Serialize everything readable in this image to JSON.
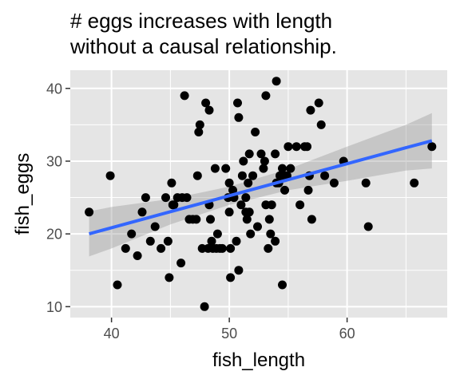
{
  "chart_data": {
    "type": "scatter",
    "title_lines": [
      "# eggs increases with length",
      "without a causal relationship."
    ],
    "xlabel": "fish_length",
    "ylabel": "fish_eggs",
    "xlim": [
      36.5,
      68.5
    ],
    "ylim": [
      8.5,
      42.5
    ],
    "x_ticks": [
      40,
      50,
      60
    ],
    "y_ticks": [
      10,
      20,
      30,
      40
    ],
    "x_tick_labels": [
      "40",
      "50",
      "60"
    ],
    "y_tick_labels": [
      "10",
      "20",
      "30",
      "40"
    ],
    "grid": true,
    "legend": "none",
    "colors": {
      "panel_background": "#e5e5e5",
      "grid": "#ffffff",
      "points": "#000000",
      "trend_line": "#3366ff",
      "confidence_band": "#999999"
    },
    "points": [
      [
        38.1,
        23
      ],
      [
        39.9,
        28
      ],
      [
        40.5,
        13
      ],
      [
        41.2,
        18
      ],
      [
        41.7,
        20
      ],
      [
        42.2,
        17
      ],
      [
        42.6,
        23
      ],
      [
        42.9,
        25
      ],
      [
        43.3,
        19
      ],
      [
        43.7,
        21
      ],
      [
        44.2,
        18
      ],
      [
        44.6,
        25
      ],
      [
        44.8,
        19
      ],
      [
        44.9,
        14
      ],
      [
        45.1,
        27
      ],
      [
        45.2,
        24
      ],
      [
        45.3,
        24
      ],
      [
        45.6,
        25
      ],
      [
        45.9,
        16
      ],
      [
        46.0,
        25
      ],
      [
        46.2,
        39
      ],
      [
        46.4,
        25
      ],
      [
        46.6,
        22
      ],
      [
        46.9,
        22
      ],
      [
        47.2,
        22
      ],
      [
        47.3,
        28
      ],
      [
        47.4,
        34
      ],
      [
        47.5,
        35
      ],
      [
        47.7,
        18
      ],
      [
        47.9,
        10
      ],
      [
        48.0,
        38
      ],
      [
        48.2,
        18
      ],
      [
        48.3,
        37
      ],
      [
        48.3,
        24
      ],
      [
        48.4,
        22
      ],
      [
        48.5,
        19
      ],
      [
        48.6,
        18
      ],
      [
        48.8,
        29
      ],
      [
        48.9,
        18
      ],
      [
        49.0,
        20
      ],
      [
        49.2,
        18
      ],
      [
        49.4,
        18
      ],
      [
        49.7,
        29
      ],
      [
        49.9,
        25
      ],
      [
        50.0,
        27
      ],
      [
        50.0,
        23
      ],
      [
        50.1,
        18
      ],
      [
        50.1,
        14
      ],
      [
        50.3,
        26
      ],
      [
        50.4,
        25
      ],
      [
        50.6,
        19
      ],
      [
        50.7,
        38
      ],
      [
        50.8,
        36
      ],
      [
        50.8,
        15
      ],
      [
        51.0,
        24
      ],
      [
        51.1,
        28
      ],
      [
        51.2,
        30
      ],
      [
        51.4,
        23
      ],
      [
        51.4,
        25
      ],
      [
        51.5,
        22
      ],
      [
        51.6,
        27
      ],
      [
        51.7,
        31
      ],
      [
        51.7,
        23
      ],
      [
        51.8,
        20
      ],
      [
        52.0,
        28
      ],
      [
        52.2,
        34
      ],
      [
        52.4,
        21
      ],
      [
        52.7,
        31
      ],
      [
        52.9,
        29
      ],
      [
        53.0,
        30
      ],
      [
        53.1,
        24
      ],
      [
        53.1,
        39
      ],
      [
        53.3,
        18
      ],
      [
        53.4,
        22
      ],
      [
        53.5,
        20
      ],
      [
        53.6,
        24
      ],
      [
        53.9,
        19
      ],
      [
        53.9,
        31
      ],
      [
        54.0,
        41
      ],
      [
        54.0,
        27
      ],
      [
        54.2,
        27
      ],
      [
        54.3,
        28
      ],
      [
        54.5,
        29
      ],
      [
        54.5,
        13
      ],
      [
        54.6,
        28
      ],
      [
        54.7,
        26
      ],
      [
        54.9,
        28
      ],
      [
        55.0,
        32
      ],
      [
        55.2,
        29
      ],
      [
        55.7,
        32
      ],
      [
        56.0,
        24
      ],
      [
        56.4,
        32
      ],
      [
        56.6,
        32
      ],
      [
        56.7,
        26
      ],
      [
        56.8,
        28
      ],
      [
        56.9,
        37
      ],
      [
        57.0,
        22
      ],
      [
        57.6,
        38
      ],
      [
        57.8,
        35
      ],
      [
        58.1,
        28
      ],
      [
        58.9,
        27
      ],
      [
        59.7,
        30
      ],
      [
        61.6,
        27
      ],
      [
        61.8,
        21
      ],
      [
        65.7,
        27
      ],
      [
        67.2,
        32
      ]
    ],
    "trend": {
      "x": [
        38.1,
        40.0,
        45.0,
        50.0,
        55.0,
        60.0,
        65.0,
        67.2
      ],
      "fit": [
        20.0,
        20.85,
        23.05,
        25.25,
        27.45,
        29.65,
        31.85,
        32.8
      ],
      "lower": [
        16.9,
        18.0,
        21.3,
        24.0,
        26.0,
        27.3,
        28.7,
        29.0
      ],
      "upper": [
        23.1,
        23.7,
        24.8,
        26.5,
        28.9,
        32.0,
        35.0,
        36.6
      ]
    }
  }
}
